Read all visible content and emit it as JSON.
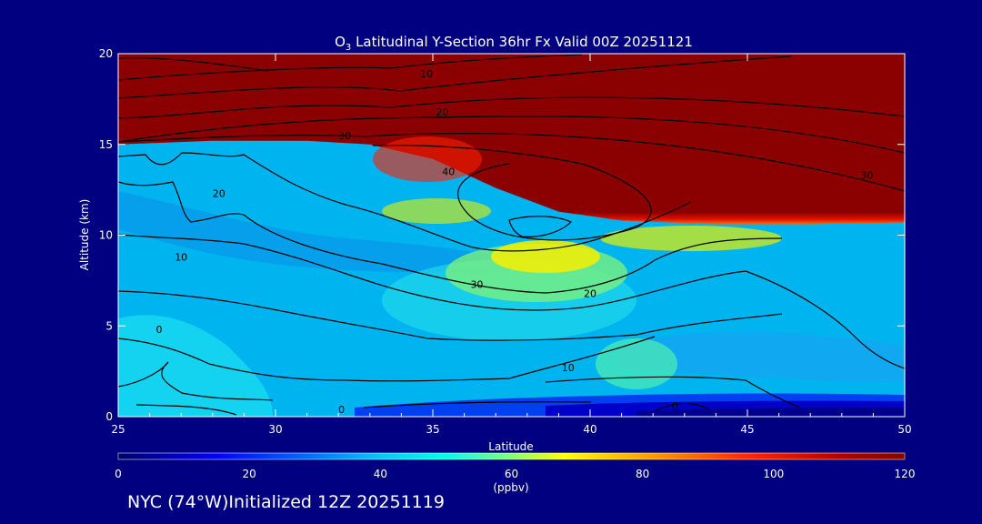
{
  "chart_data": {
    "type": "heatmap",
    "title": {
      "prefix": "O",
      "sub": "3",
      "rest": " Latitudinal Y-Section 36hr  Fx Valid 00Z 20251121"
    },
    "xlabel": "Latitude",
    "ylabel": "Altitude (km)",
    "xlim": [
      25,
      50
    ],
    "ylim": [
      0,
      20
    ],
    "x_ticks": [
      25,
      30,
      35,
      40,
      45,
      50
    ],
    "y_ticks": [
      0,
      5,
      10,
      15,
      20
    ],
    "colorbar": {
      "min": 0,
      "max": 120,
      "ticks": [
        0,
        20,
        40,
        60,
        80,
        100,
        120
      ],
      "unit": "(ppbv)",
      "stops": [
        {
          "v": 0,
          "c": "#00006a"
        },
        {
          "v": 15,
          "c": "#0000ff"
        },
        {
          "v": 28,
          "c": "#0064ff"
        },
        {
          "v": 40,
          "c": "#00c8ff"
        },
        {
          "v": 50,
          "c": "#00ffe6"
        },
        {
          "v": 58,
          "c": "#64ff96"
        },
        {
          "v": 68,
          "c": "#ffff00"
        },
        {
          "v": 82,
          "c": "#ff9600"
        },
        {
          "v": 96,
          "c": "#ff2800"
        },
        {
          "v": 110,
          "c": "#b40000"
        },
        {
          "v": 120,
          "c": "#8b0000"
        }
      ]
    },
    "tropopause_km": [
      {
        "lat": 25,
        "z": 15.0
      },
      {
        "lat": 28,
        "z": 15.2
      },
      {
        "lat": 31,
        "z": 15.2
      },
      {
        "lat": 33,
        "z": 15.0
      },
      {
        "lat": 35,
        "z": 14.2
      },
      {
        "lat": 37,
        "z": 12.6
      },
      {
        "lat": 39,
        "z": 11.3
      },
      {
        "lat": 41,
        "z": 10.8
      },
      {
        "lat": 44,
        "z": 10.6
      },
      {
        "lat": 47,
        "z": 10.6
      },
      {
        "lat": 50,
        "z": 10.7
      }
    ],
    "contour_labels": [
      {
        "lat": 34.8,
        "z": 18.9,
        "text": "10"
      },
      {
        "lat": 35.3,
        "z": 16.8,
        "text": "20"
      },
      {
        "lat": 32.2,
        "z": 15.5,
        "text": "30"
      },
      {
        "lat": 35.5,
        "z": 13.5,
        "text": "40"
      },
      {
        "lat": 48.8,
        "z": 13.3,
        "text": "30"
      },
      {
        "lat": 28.2,
        "z": 12.3,
        "text": "20"
      },
      {
        "lat": 27.0,
        "z": 8.8,
        "text": "10"
      },
      {
        "lat": 36.4,
        "z": 7.3,
        "text": "30"
      },
      {
        "lat": 40.0,
        "z": 6.8,
        "text": "20"
      },
      {
        "lat": 39.3,
        "z": 2.7,
        "text": "10"
      },
      {
        "lat": 26.3,
        "z": 4.8,
        "text": "0"
      },
      {
        "lat": 32.1,
        "z": 0.4,
        "text": "0"
      },
      {
        "lat": 42.7,
        "z": 0.6,
        "text": "0"
      }
    ]
  },
  "footer": "NYC (74°W)Initialized 12Z 20251119"
}
